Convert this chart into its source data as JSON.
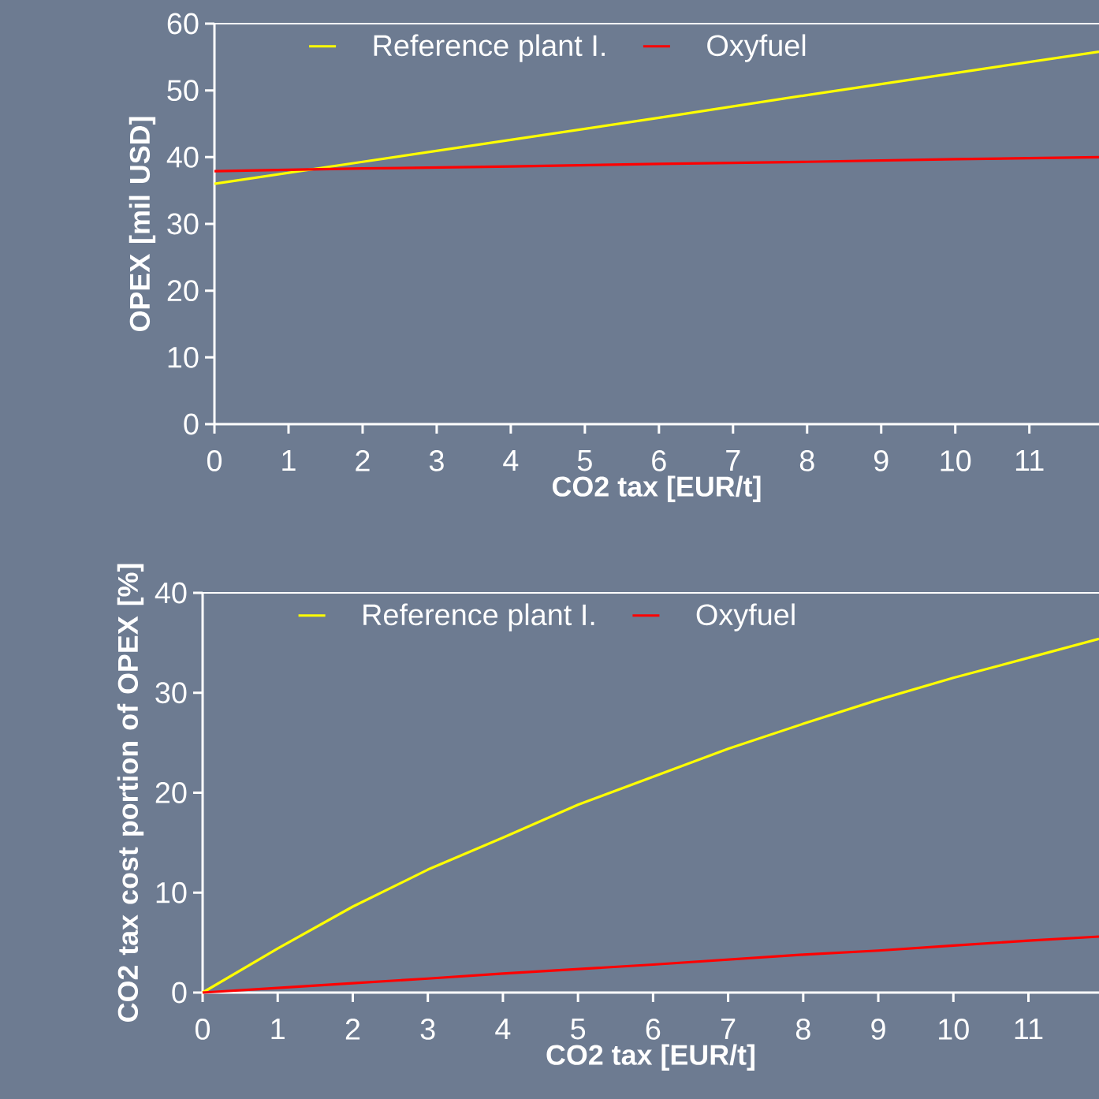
{
  "chart_data": [
    {
      "type": "line",
      "xlabel": "CO2 tax [EUR/t]",
      "ylabel": "OPEX [mil USD]",
      "xlim": [
        0,
        11.94
      ],
      "ylim": [
        0,
        60
      ],
      "xticks": [
        0,
        1,
        2,
        3,
        4,
        5,
        6,
        7,
        8,
        9,
        10,
        11
      ],
      "yticks": [
        0,
        10,
        20,
        30,
        40,
        50,
        60
      ],
      "legend": "top left",
      "grid": false,
      "marker": "none",
      "line_style": "solid",
      "x": [
        0,
        2,
        4,
        6,
        8,
        10,
        11.94
      ],
      "series": [
        {
          "name": "Reference plant I.",
          "color": "#ffff00",
          "values": [
            36.0,
            39.3,
            42.6,
            45.9,
            49.3,
            52.6,
            55.8
          ]
        },
        {
          "name": "Oxyfuel",
          "color": "#ff0000",
          "values": [
            37.9,
            38.3,
            38.6,
            39.0,
            39.3,
            39.7,
            40.0
          ]
        }
      ]
    },
    {
      "type": "line",
      "xlabel": "CO2 tax [EUR/t]",
      "ylabel": "CO2 tax cost portion of OPEX [%]",
      "xlim": [
        0,
        11.94
      ],
      "ylim": [
        0,
        40
      ],
      "xticks": [
        0,
        1,
        2,
        3,
        4,
        5,
        6,
        7,
        8,
        9,
        10,
        11
      ],
      "yticks": [
        0,
        10,
        20,
        30,
        40
      ],
      "legend": "top left",
      "grid": false,
      "marker": "none",
      "line_style": "solid",
      "x": [
        0,
        1,
        2,
        3,
        4,
        5,
        6,
        7,
        8,
        9,
        10,
        11,
        11.94
      ],
      "series": [
        {
          "name": "Reference plant I.",
          "color": "#ffff00",
          "values": [
            0,
            4.4,
            8.6,
            12.3,
            15.5,
            18.8,
            21.6,
            24.4,
            26.9,
            29.3,
            31.5,
            33.5,
            35.4
          ]
        },
        {
          "name": "Oxyfuel",
          "color": "#ff0000",
          "values": [
            0,
            0.47,
            0.94,
            1.4,
            1.9,
            2.35,
            2.8,
            3.3,
            3.8,
            4.2,
            4.7,
            5.2,
            5.6
          ]
        }
      ]
    }
  ]
}
